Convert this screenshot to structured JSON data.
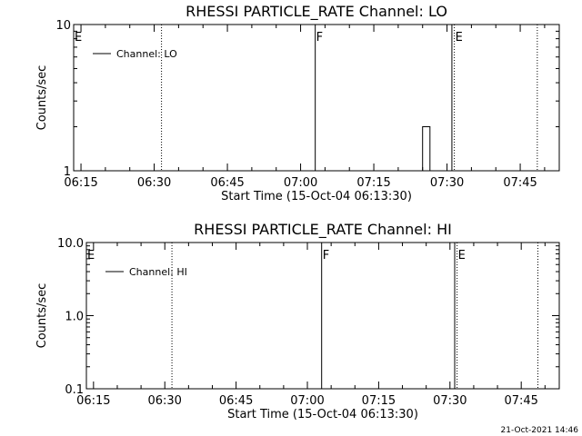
{
  "chart_data": [
    {
      "type": "line",
      "title": "RHESSI PARTICLE_RATE Channel: LO",
      "xlabel": "Start Time (15-Oct-04 06:13:30)",
      "ylabel": "Counts/sec",
      "yscale": "log",
      "ylim": [
        1,
        10
      ],
      "yticks": [
        "1",
        "10"
      ],
      "xlim": [
        "06:13:30",
        "07:53:00"
      ],
      "xticks": [
        "06:15",
        "06:30",
        "06:45",
        "07:00",
        "07:15",
        "07:30",
        "07:45"
      ],
      "legend": {
        "position": "top-left",
        "entries": [
          "Channel: LO"
        ]
      },
      "grid": false,
      "series": [
        {
          "name": "Channel: LO",
          "points": [
            [
              "07:25:00",
              1
            ],
            [
              "07:25:00",
              2
            ],
            [
              "07:26:30",
              2
            ],
            [
              "07:26:30",
              1
            ]
          ]
        }
      ],
      "markers": [
        {
          "time": "06:13:30",
          "label": "E",
          "style": "solid"
        },
        {
          "time": "06:31:30",
          "style": "dotted"
        },
        {
          "time": "07:03:00",
          "label": "F",
          "style": "solid"
        },
        {
          "time": "07:31:00",
          "style": "solid"
        },
        {
          "time": "07:31:30",
          "label": "E",
          "style": "dotted"
        },
        {
          "time": "07:48:30",
          "style": "dotted"
        }
      ]
    },
    {
      "type": "line",
      "title": "RHESSI PARTICLE_RATE Channel: HI",
      "xlabel": "Start Time (15-Oct-04 06:13:30)",
      "ylabel": "Counts/sec",
      "yscale": "log",
      "ylim": [
        0.1,
        10
      ],
      "yticks": [
        "0.1",
        "1.0",
        "10.0"
      ],
      "xlim": [
        "06:13:30",
        "07:53:00"
      ],
      "xticks": [
        "06:15",
        "06:30",
        "06:45",
        "07:00",
        "07:15",
        "07:30",
        "07:45"
      ],
      "legend": {
        "position": "top-left",
        "entries": [
          "Channel: HI"
        ]
      },
      "grid": false,
      "series": [
        {
          "name": "Channel: HI",
          "points": []
        }
      ],
      "markers": [
        {
          "time": "06:13:30",
          "label": "E",
          "style": "solid"
        },
        {
          "time": "06:31:30",
          "style": "dotted"
        },
        {
          "time": "07:03:00",
          "label": "F",
          "style": "solid"
        },
        {
          "time": "07:31:00",
          "style": "solid"
        },
        {
          "time": "07:31:30",
          "label": "E",
          "style": "dotted"
        },
        {
          "time": "07:48:30",
          "style": "dotted"
        }
      ]
    }
  ],
  "footer": {
    "timestamp": "21-Oct-2021 14:46"
  }
}
